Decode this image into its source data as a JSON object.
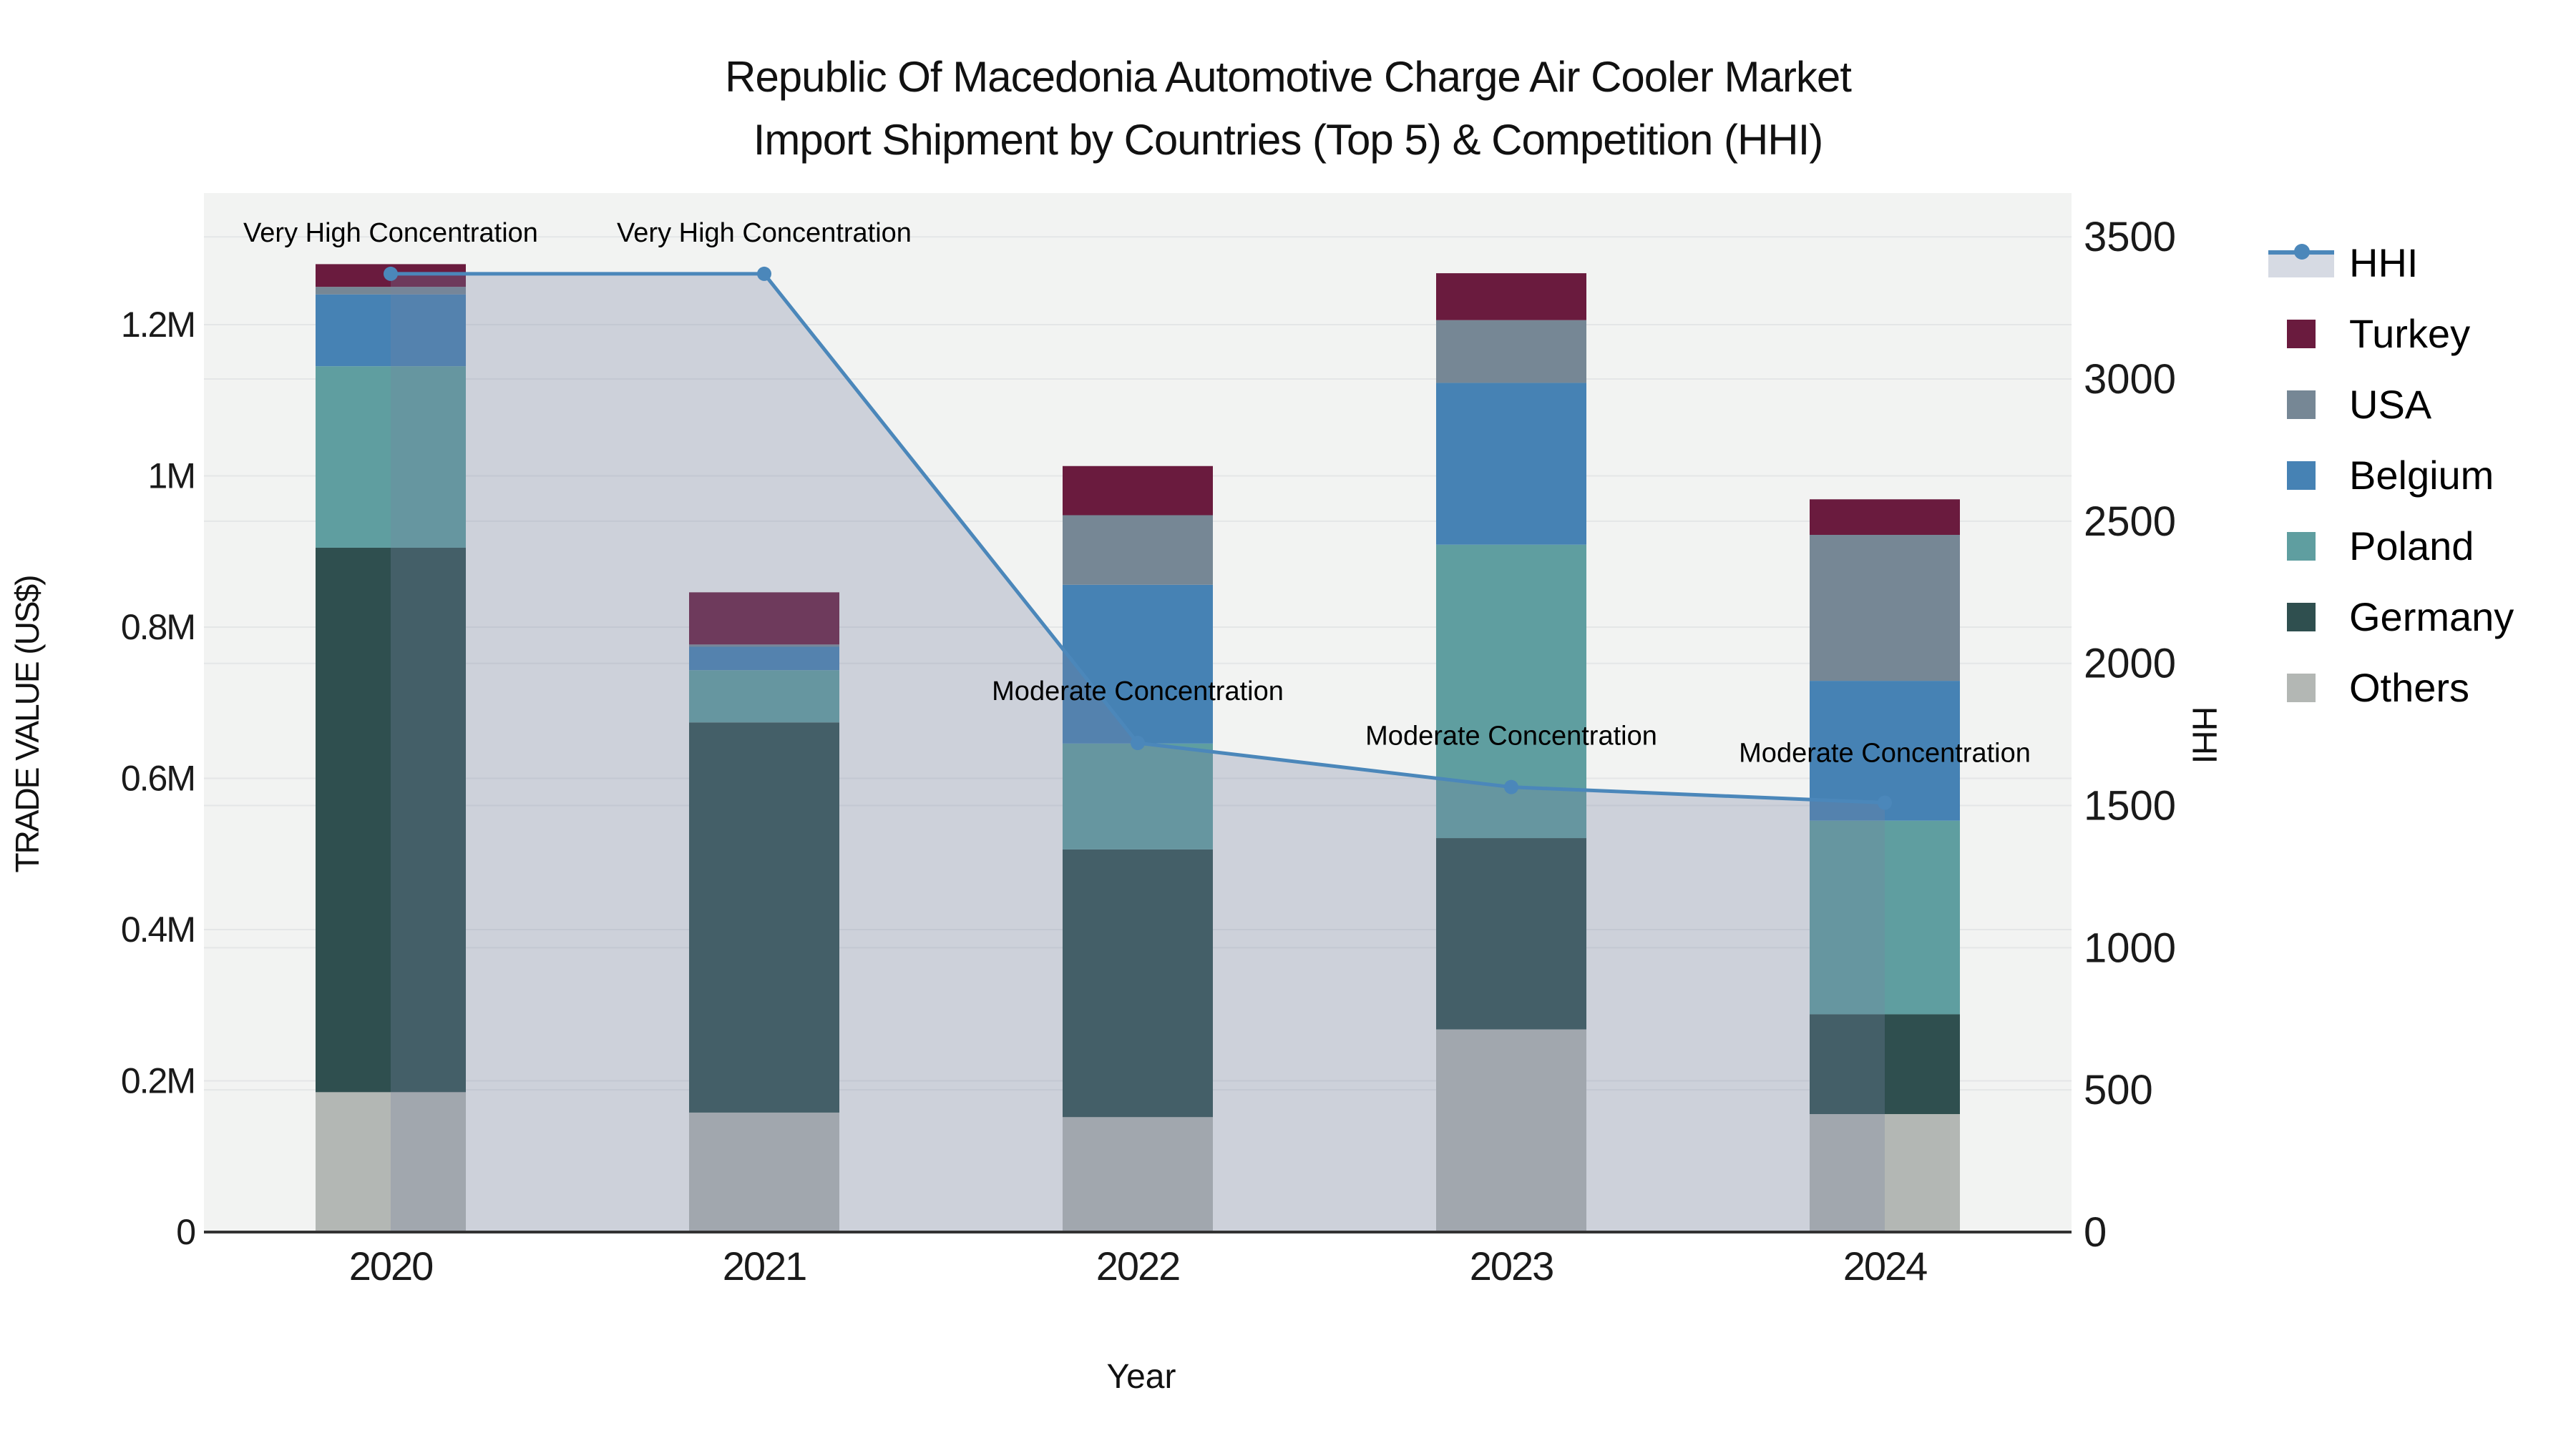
{
  "title": {
    "line1": "Republic Of Macedonia Automotive Charge Air Cooler Market",
    "line2": "Import Shipment by Countries (Top 5) & Competition (HHI)"
  },
  "legend": {
    "items": [
      {
        "label": "HHI",
        "type": "line",
        "color": "#4b87ba"
      },
      {
        "label": "Turkey",
        "type": "patch",
        "color": "#6a1b3e"
      },
      {
        "label": "USA",
        "type": "patch",
        "color": "#768795"
      },
      {
        "label": "Belgium",
        "type": "patch",
        "color": "#4682b4"
      },
      {
        "label": "Poland",
        "type": "patch",
        "color": "#5f9ea0"
      },
      {
        "label": "Germany",
        "type": "patch",
        "color": "#2f4f4f"
      },
      {
        "label": "Others",
        "type": "patch",
        "color": "#b3b7b4"
      }
    ]
  },
  "chart_data": {
    "type": "bar",
    "subtype": "stacked-bars-with-line-overlay-and-area-fill",
    "title": "Republic Of Macedonia Automotive Charge Air Cooler Market Import Shipment by Countries (Top 5) & Competition (HHI)",
    "xlabel": "Year",
    "ylabel": "TRADE VALUE (US$)",
    "y2label": "HHI",
    "categories": [
      "2020",
      "2021",
      "2022",
      "2023",
      "2024"
    ],
    "series": [
      {
        "name": "Turkey",
        "color": "#6a1b3e",
        "values": [
          30000,
          69000,
          65000,
          62000,
          47000
        ]
      },
      {
        "name": "USA",
        "color": "#768795",
        "values": [
          10000,
          3000,
          92000,
          83000,
          193000
        ]
      },
      {
        "name": "Belgium",
        "color": "#4682b4",
        "values": [
          95000,
          31000,
          210000,
          214000,
          185000
        ]
      },
      {
        "name": "Poland",
        "color": "#5f9ea0",
        "values": [
          240000,
          69000,
          140000,
          388000,
          256000
        ]
      },
      {
        "name": "Germany",
        "color": "#2f4f4f",
        "values": [
          720000,
          516000,
          354000,
          253000,
          132000
        ]
      },
      {
        "name": "Others",
        "color": "#b3b7b4",
        "values": [
          185000,
          158000,
          152000,
          268000,
          156000
        ]
      }
    ],
    "stack_order_bottom_to_top": [
      "Others",
      "Germany",
      "Poland",
      "Belgium",
      "USA",
      "Turkey"
    ],
    "bar_totals": [
      1280000,
      846000,
      1013000,
      1268000,
      969000
    ],
    "line_series": {
      "name": "HHI",
      "color": "#4b87ba",
      "area_fill": "rgba(119,133,163,0.30)",
      "values": [
        3370,
        3370,
        1720,
        1565,
        1510
      ]
    },
    "annotations": [
      {
        "text": "Very High Concentration",
        "category": "2020",
        "dy": -45
      },
      {
        "text": "Very High Concentration",
        "category": "2021",
        "dy": -45
      },
      {
        "text": "Moderate Concentration",
        "category": "2022",
        "dy": -60
      },
      {
        "text": "Moderate Concentration",
        "category": "2023",
        "dy": -59
      },
      {
        "text": "Moderate Concentration",
        "category": "2024",
        "dy": -57
      }
    ],
    "ylim": [
      0,
      1374000
    ],
    "y2lim": [
      0,
      3654
    ],
    "yticks": [
      {
        "v": 0,
        "label": "0"
      },
      {
        "v": 200000,
        "label": "0.2M"
      },
      {
        "v": 400000,
        "label": "0.4M"
      },
      {
        "v": 600000,
        "label": "0.6M"
      },
      {
        "v": 800000,
        "label": "0.8M"
      },
      {
        "v": 1000000,
        "label": "1M"
      },
      {
        "v": 1200000,
        "label": "1.2M"
      }
    ],
    "y2ticks": [
      {
        "v": 0,
        "label": "0"
      },
      {
        "v": 500,
        "label": "500"
      },
      {
        "v": 1000,
        "label": "1000"
      },
      {
        "v": 1500,
        "label": "1500"
      },
      {
        "v": 2000,
        "label": "2000"
      },
      {
        "v": 2500,
        "label": "2500"
      },
      {
        "v": 3000,
        "label": "3000"
      },
      {
        "v": 3500,
        "label": "3500"
      }
    ],
    "grid": true,
    "legend_position": "right"
  },
  "colors": {
    "plot_bg": "#f2f3f2",
    "grid": "#e4e6e7",
    "axis_line": "#333333",
    "tick_text": "#1a1a1a",
    "annotation_text": "#000000"
  }
}
